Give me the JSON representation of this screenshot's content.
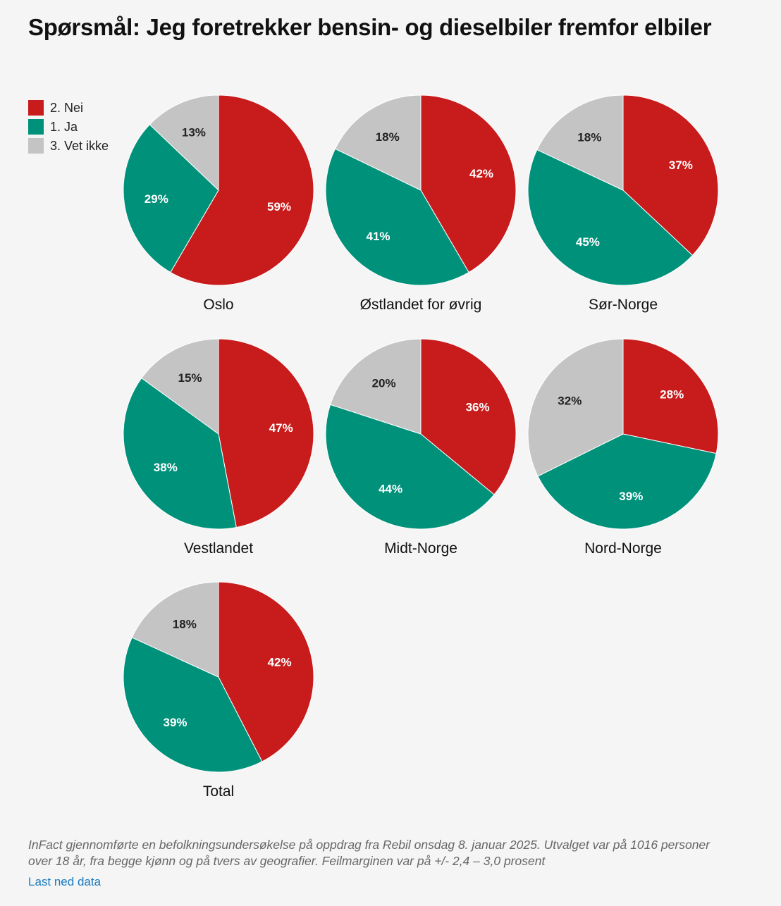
{
  "header": {
    "title": "Spørsmål: Jeg foretrekker bensin- og dieselbiler fremfor elbiler"
  },
  "legend": [
    {
      "label": "2. Nei",
      "color": "#c81b1c"
    },
    {
      "label": "1. Ja",
      "color": "#00917a"
    },
    {
      "label": "3. Vet ikke",
      "color": "#c4c4c4"
    }
  ],
  "chart_data": {
    "type": "pie",
    "series_order": [
      "2. Nei",
      "1. Ja",
      "3. Vet ikke"
    ],
    "colors": [
      "#c81b1c",
      "#00917a",
      "#c4c4c4"
    ],
    "label_colors": [
      "#ffffff",
      "#ffffff",
      "#222222"
    ],
    "pies": [
      {
        "name": "Oslo",
        "values": [
          59,
          29,
          13
        ]
      },
      {
        "name": "Østlandet for øvrig",
        "values": [
          42,
          41,
          18
        ]
      },
      {
        "name": "Sør-Norge",
        "values": [
          37,
          45,
          18
        ]
      },
      {
        "name": "Vestlandet",
        "values": [
          47,
          38,
          15
        ]
      },
      {
        "name": "Midt-Norge",
        "values": [
          36,
          44,
          20
        ]
      },
      {
        "name": "Nord-Norge",
        "values": [
          28,
          39,
          32
        ]
      },
      {
        "name": "Total",
        "values": [
          42,
          39,
          18
        ]
      }
    ],
    "value_suffix": "%"
  },
  "footer": {
    "note": "InFact gjennomførte en befolkningsundersøkelse på oppdrag fra Rebil onsdag 8. januar 2025. Utvalget var på 1016 personer over 18 år, fra begge kjønn og på tvers av geografier. Feilmarginen var på +/- 2,4 – 3,0 prosent",
    "download_link": "Last ned data"
  }
}
